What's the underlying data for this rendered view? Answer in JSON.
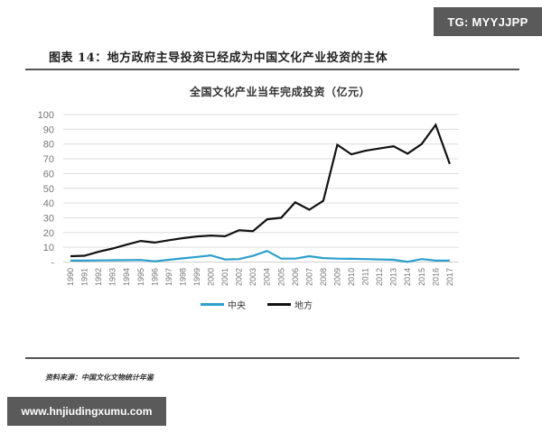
{
  "watermarks": {
    "top_right": "TG: MYYJJPP",
    "bottom_left": "www.hnjiudingxumu.com"
  },
  "figure_title": "图表 14：地方政府主导投资已经成为中国文化产业投资的主体",
  "source_note": "资料来源：中国文化文物统计年鉴",
  "colors": {
    "central": "#2e9fcb",
    "local": "#111111",
    "grid": "#dcdcdc",
    "rule": "#555555"
  },
  "chart_data": {
    "type": "line",
    "title": "全国文化产业当年完成投资（亿元）",
    "xlabel": "",
    "ylabel": "",
    "ylim": [
      0,
      100
    ],
    "yticks": [
      "-",
      "10",
      "20",
      "30",
      "40",
      "50",
      "60",
      "70",
      "80",
      "90",
      "100"
    ],
    "grid": true,
    "legend_position": "bottom",
    "categories": [
      "1990",
      "1991",
      "1992",
      "1993",
      "1994",
      "1995",
      "1996",
      "1997",
      "1998",
      "1999",
      "2000",
      "2001",
      "2002",
      "2003",
      "2004",
      "2005",
      "2006",
      "2007",
      "2008",
      "2009",
      "2010",
      "2011",
      "2012",
      "2013",
      "2014",
      "2015",
      "2016",
      "2017"
    ],
    "series": [
      {
        "name": "中央",
        "color": "#2e9fcb",
        "values": [
          1.0,
          1.0,
          1.1,
          1.2,
          1.3,
          1.4,
          0.5,
          1.5,
          2.5,
          3.5,
          4.5,
          1.8,
          2.0,
          4.2,
          7.5,
          2.3,
          2.3,
          4.0,
          2.7,
          2.3,
          2.2,
          2.0,
          1.8,
          1.5,
          0.2,
          2.0,
          1.0,
          1.0
        ]
      },
      {
        "name": "地方",
        "color": "#111111",
        "values": [
          4.0,
          4.3,
          7.0,
          9.2,
          11.8,
          14.3,
          13.2,
          14.8,
          16.2,
          17.4,
          18.0,
          17.5,
          21.5,
          21.0,
          29.0,
          30.0,
          40.5,
          35.5,
          41.5,
          79.5,
          73.0,
          75.5,
          77.0,
          78.5,
          73.5,
          80.0,
          93.0,
          66.5
        ]
      }
    ]
  }
}
